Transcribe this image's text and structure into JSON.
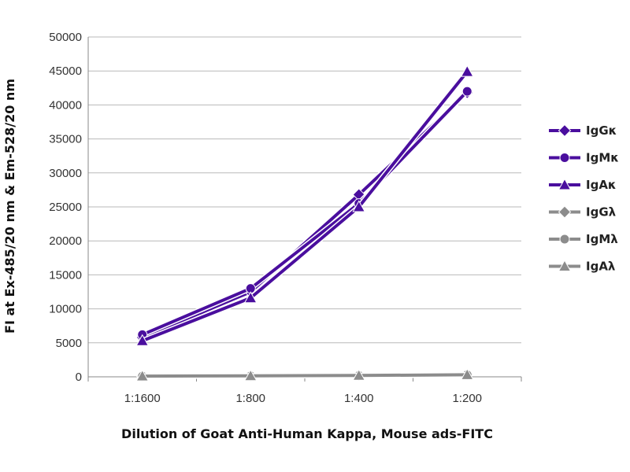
{
  "chart_data": {
    "type": "line",
    "categories": [
      "1:1600",
      "1:800",
      "1:400",
      "1:200"
    ],
    "xlabel": "Dilution of Goat Anti-Human Kappa, Mouse ads-FITC",
    "ylabel": "FI at Ex-485/20 nm & Em-528/20 nm",
    "ylim": [
      0,
      50000
    ],
    "yticks": [
      0,
      5000,
      10000,
      15000,
      20000,
      25000,
      30000,
      35000,
      40000,
      45000,
      50000
    ],
    "grid": "horizontal",
    "legend": "right",
    "series": [
      {
        "name": "IgGκ",
        "marker": "diamond",
        "color": "#4a0e9e",
        "values": [
          5800,
          12500,
          26800,
          41800
        ]
      },
      {
        "name": "IgMκ",
        "marker": "circle",
        "color": "#4a0e9e",
        "values": [
          6200,
          13000,
          25500,
          42000
        ]
      },
      {
        "name": "IgAκ",
        "marker": "triangle",
        "color": "#4a0e9e",
        "values": [
          5300,
          11600,
          25000,
          44900
        ]
      },
      {
        "name": "IgGλ",
        "marker": "diamond",
        "color": "#8c8c8c",
        "values": [
          100,
          150,
          200,
          300
        ]
      },
      {
        "name": "IgMλ",
        "marker": "circle",
        "color": "#8c8c8c",
        "values": [
          100,
          150,
          200,
          300
        ]
      },
      {
        "name": "IgAλ",
        "marker": "triangle",
        "color": "#8c8c8c",
        "values": [
          100,
          150,
          200,
          300
        ]
      }
    ]
  }
}
